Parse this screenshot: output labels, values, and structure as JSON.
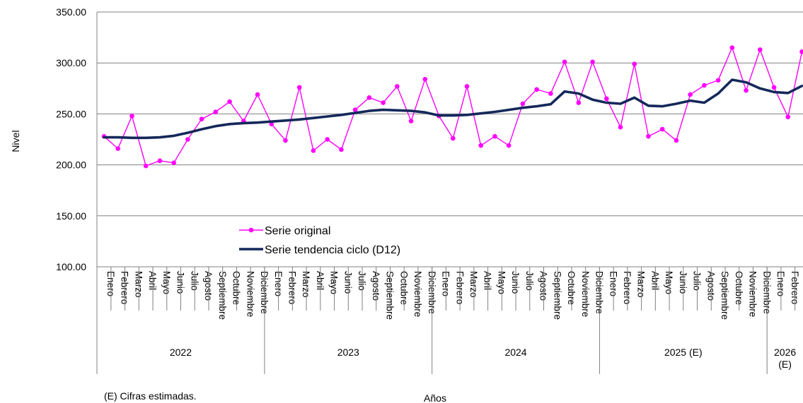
{
  "chart_data": {
    "type": "line",
    "ylabel": "Nivel",
    "xlabel": "Años",
    "footnote": "(E) Cifras estimadas.",
    "ylim": [
      100,
      350
    ],
    "yticks": [
      "100.00",
      "150.00",
      "200.00",
      "250.00",
      "300.00",
      "350.00"
    ],
    "grid": true,
    "legend_position": "center-left",
    "months_per_year": [
      "Enero",
      "Febrero",
      "Marzo",
      "Abril",
      "Mayo",
      "Junio",
      "Julio",
      "Agosto",
      "Septiembre",
      "Octubre",
      "Noviembre",
      "Diciembre"
    ],
    "years": [
      {
        "label": "2022",
        "months": 12
      },
      {
        "label": "2023",
        "months": 12
      },
      {
        "label": "2024",
        "months": 12
      },
      {
        "label": "2025 (E)",
        "months": 12
      },
      {
        "label": "2026 (E)",
        "months": 3
      }
    ],
    "series": [
      {
        "name": "Serie original",
        "color": "#ff00ff",
        "marker": "circle",
        "values": [
          228,
          216,
          248,
          199,
          204,
          202,
          225,
          245,
          252,
          262,
          243,
          269,
          240,
          224,
          276,
          214,
          225,
          215,
          254,
          266,
          261,
          277,
          243,
          284,
          248,
          226,
          277,
          219,
          228,
          219,
          260,
          274,
          270,
          301,
          261,
          301,
          265,
          237,
          299,
          228,
          235,
          224,
          269,
          278,
          283,
          315,
          273,
          313,
          276,
          247,
          311
        ]
      },
      {
        "name": "Serie tendencia ciclo (D12)",
        "color": "#14285a",
        "marker": "none",
        "values": [
          227,
          227,
          226.5,
          226.5,
          227,
          228.5,
          231.5,
          235,
          238,
          240,
          241,
          241.5,
          242.5,
          243.5,
          244.5,
          246,
          247.5,
          249,
          251,
          253,
          254,
          253.5,
          253,
          251.5,
          248.5,
          248.5,
          249,
          250.5,
          252,
          254,
          256,
          257.5,
          259.5,
          272,
          270,
          264,
          261,
          260,
          266,
          258,
          257.5,
          260,
          263,
          261,
          270,
          283.5,
          281,
          275,
          271.5,
          270.5,
          277.5
        ]
      }
    ]
  }
}
